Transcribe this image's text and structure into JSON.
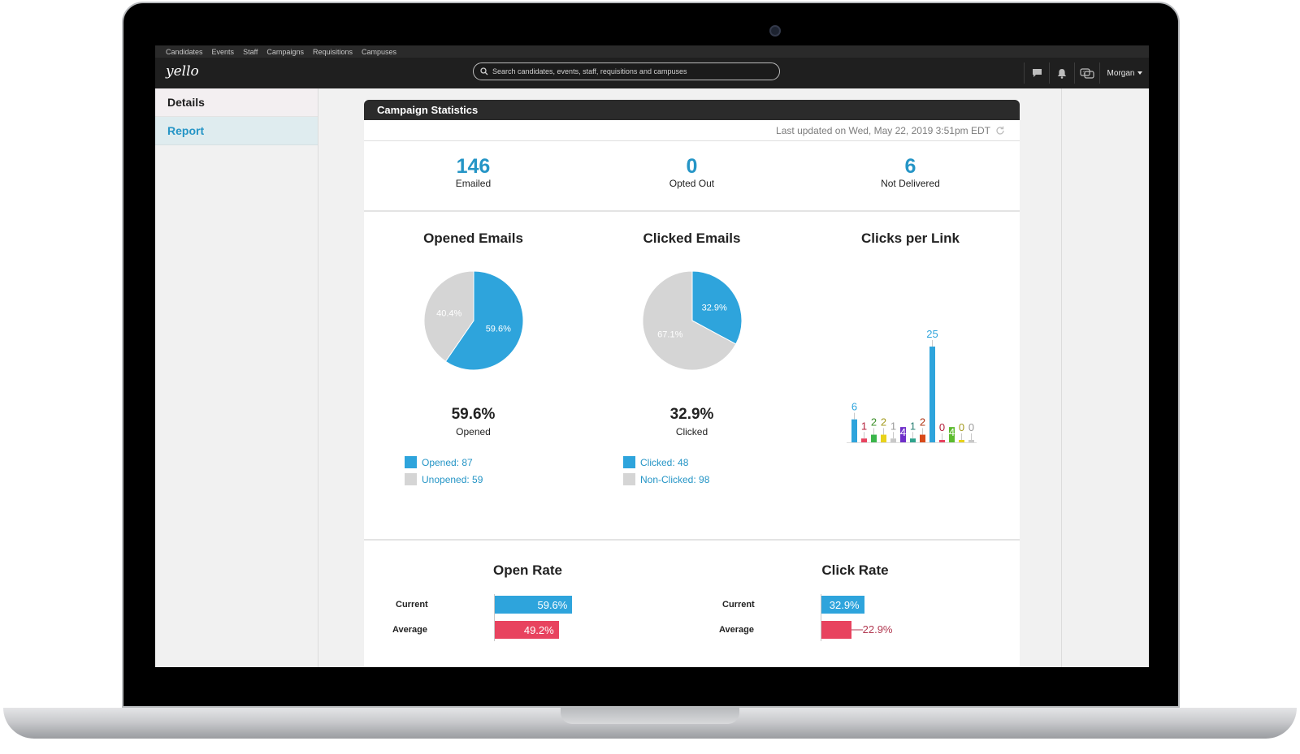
{
  "nav": {
    "top_links": [
      "Candidates",
      "Events",
      "Staff",
      "Campaigns",
      "Requisitions",
      "Campuses"
    ],
    "logo": "yello",
    "search_placeholder": "Search candidates, events, staff, requisitions and campuses",
    "icons": [
      "chat-icon",
      "bell-icon",
      "help-chat-icon"
    ],
    "user": "Morgan"
  },
  "sidebar": {
    "items": [
      {
        "label": "Details",
        "active": false
      },
      {
        "label": "Report",
        "active": true
      }
    ]
  },
  "card": {
    "title": "Campaign Statistics",
    "updated": "Last updated on Wed, May 22, 2019 3:51pm EDT",
    "stats": [
      {
        "value": "146",
        "label": "Emailed"
      },
      {
        "value": "0",
        "label": "Opted Out"
      },
      {
        "value": "6",
        "label": "Not Delivered"
      }
    ]
  },
  "colors": {
    "accent": "#2595c6",
    "blue": "#2ea4dc",
    "gray": "#d5d5d5",
    "red": "#e8435f",
    "dark_red": "#b23a52"
  },
  "charts": {
    "opened": {
      "title": "Opened Emails",
      "pct": "59.6%",
      "pct_label": "Opened",
      "legend": [
        "Opened: 87",
        "Unopened: 59"
      ]
    },
    "clicked": {
      "title": "Clicked Emails",
      "pct": "32.9%",
      "pct_label": "Clicked",
      "legend": [
        "Clicked: 48",
        "Non-Clicked: 98"
      ]
    },
    "clicks": {
      "title": "Clicks per Link"
    },
    "open_rate": {
      "title": "Open Rate",
      "current_label": "Current",
      "average_label": "Average",
      "current": "59.6%",
      "average": "49.2%"
    },
    "click_rate": {
      "title": "Click Rate",
      "current_label": "Current",
      "average_label": "Average",
      "current": "32.9%",
      "average": "22.9%"
    }
  },
  "chart_data": [
    {
      "type": "pie",
      "title": "Opened Emails",
      "categories": [
        "Opened",
        "Unopened"
      ],
      "values": [
        87,
        59
      ],
      "labels": [
        "59.6%",
        "40.4%"
      ],
      "colors": [
        "#2ea4dc",
        "#d5d5d5"
      ]
    },
    {
      "type": "pie",
      "title": "Clicked Emails",
      "categories": [
        "Clicked",
        "Non-Clicked"
      ],
      "values": [
        48,
        98
      ],
      "labels": [
        "32.9%",
        "67.1%"
      ],
      "colors": [
        "#2ea4dc",
        "#d5d5d5"
      ]
    },
    {
      "type": "bar",
      "title": "Clicks per Link",
      "values": [
        6,
        1,
        2,
        2,
        1,
        4,
        1,
        2,
        25,
        0,
        4,
        0,
        0
      ],
      "colors": [
        "#2ea4dc",
        "#e8435f",
        "#3ab54a",
        "#e8d21b",
        "#c8c8c8",
        "#6f2fc9",
        "#2fa38d",
        "#d94a1a",
        "#2ea4dc",
        "#e8435f",
        "#5bbb2e",
        "#e8d21b",
        "#c8c8c8"
      ],
      "label_colors": [
        "#2ea4dc",
        "#b31f3a",
        "#3c8f2a",
        "#a39a1d",
        "#9b9b9b",
        "#ffffff",
        "#2a7f74",
        "#b03515",
        "#2ea4dc",
        "#b31f3a",
        "#ffffff",
        "#a39a1d",
        "#9b9b9b"
      ],
      "ylim": [
        0,
        25
      ]
    },
    {
      "type": "bar",
      "title": "Open Rate",
      "categories": [
        "Current",
        "Average"
      ],
      "values": [
        59.6,
        49.2
      ],
      "colors": [
        "#2ea4dc",
        "#e8435f"
      ]
    },
    {
      "type": "bar",
      "title": "Click Rate",
      "categories": [
        "Current",
        "Average"
      ],
      "values": [
        32.9,
        22.9
      ],
      "colors": [
        "#2ea4dc",
        "#e8435f"
      ]
    }
  ]
}
